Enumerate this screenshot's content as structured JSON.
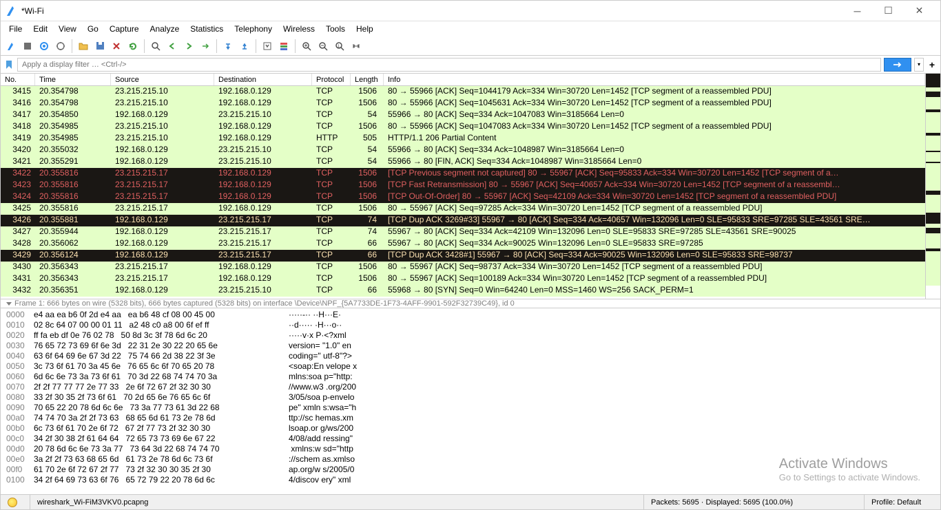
{
  "window": {
    "title": "*Wi-Fi"
  },
  "menu": [
    "File",
    "Edit",
    "View",
    "Go",
    "Capture",
    "Analyze",
    "Statistics",
    "Telephony",
    "Wireless",
    "Tools",
    "Help"
  ],
  "filter": {
    "placeholder": "Apply a display filter … <Ctrl-/>"
  },
  "columns": [
    {
      "key": "no",
      "label": "No.",
      "cls": "col-no"
    },
    {
      "key": "time",
      "label": "Time",
      "cls": "col-time"
    },
    {
      "key": "src",
      "label": "Source",
      "cls": "col-src"
    },
    {
      "key": "dst",
      "label": "Destination",
      "cls": "col-dst"
    },
    {
      "key": "proto",
      "label": "Protocol",
      "cls": "col-proto"
    },
    {
      "key": "len",
      "label": "Length",
      "cls": "col-len"
    },
    {
      "key": "info",
      "label": "Info",
      "cls": "col-info"
    }
  ],
  "row_styles": {
    "green": {
      "bg": "#e4ffc7",
      "fg": "#000000"
    },
    "dark": {
      "bg": "#1a1714",
      "fg": "#e06060"
    },
    "darkw": {
      "bg": "#1a1714",
      "fg": "#fbe0b0"
    }
  },
  "packets": [
    {
      "style": "green",
      "no": "3415",
      "time": "20.354798",
      "src": "23.215.215.10",
      "dst": "192.168.0.129",
      "proto": "TCP",
      "len": "1506",
      "info": "80 → 55966 [ACK] Seq=1044179 Ack=334 Win=30720 Len=1452 [TCP segment of a reassembled PDU]"
    },
    {
      "style": "green",
      "no": "3416",
      "time": "20.354798",
      "src": "23.215.215.10",
      "dst": "192.168.0.129",
      "proto": "TCP",
      "len": "1506",
      "info": "80 → 55966 [ACK] Seq=1045631 Ack=334 Win=30720 Len=1452 [TCP segment of a reassembled PDU]"
    },
    {
      "style": "green",
      "no": "3417",
      "time": "20.354850",
      "src": "192.168.0.129",
      "dst": "23.215.215.10",
      "proto": "TCP",
      "len": "54",
      "info": "55966 → 80 [ACK] Seq=334 Ack=1047083 Win=3185664 Len=0"
    },
    {
      "style": "green",
      "no": "3418",
      "time": "20.354985",
      "src": "23.215.215.10",
      "dst": "192.168.0.129",
      "proto": "TCP",
      "len": "1506",
      "info": "80 → 55966 [ACK] Seq=1047083 Ack=334 Win=30720 Len=1452 [TCP segment of a reassembled PDU]"
    },
    {
      "style": "green",
      "no": "3419",
      "time": "20.354985",
      "src": "23.215.215.10",
      "dst": "192.168.0.129",
      "proto": "HTTP",
      "len": "505",
      "info": "HTTP/1.1 206 Partial Content "
    },
    {
      "style": "green",
      "no": "3420",
      "time": "20.355032",
      "src": "192.168.0.129",
      "dst": "23.215.215.10",
      "proto": "TCP",
      "len": "54",
      "info": "55966 → 80 [ACK] Seq=334 Ack=1048987 Win=3185664 Len=0"
    },
    {
      "style": "green",
      "no": "3421",
      "time": "20.355291",
      "src": "192.168.0.129",
      "dst": "23.215.215.10",
      "proto": "TCP",
      "len": "54",
      "info": "55966 → 80 [FIN, ACK] Seq=334 Ack=1048987 Win=3185664 Len=0"
    },
    {
      "style": "dark",
      "no": "3422",
      "time": "20.355816",
      "src": "23.215.215.17",
      "dst": "192.168.0.129",
      "proto": "TCP",
      "len": "1506",
      "info": "[TCP Previous segment not captured] 80 → 55967 [ACK] Seq=95833 Ack=334 Win=30720 Len=1452 [TCP segment of a…"
    },
    {
      "style": "dark",
      "no": "3423",
      "time": "20.355816",
      "src": "23.215.215.17",
      "dst": "192.168.0.129",
      "proto": "TCP",
      "len": "1506",
      "info": "[TCP Fast Retransmission] 80 → 55967 [ACK] Seq=40657 Ack=334 Win=30720 Len=1452 [TCP segment of a reassembl…"
    },
    {
      "style": "dark",
      "no": "3424",
      "time": "20.355816",
      "src": "23.215.215.17",
      "dst": "192.168.0.129",
      "proto": "TCP",
      "len": "1506",
      "info": "[TCP Out-Of-Order] 80 → 55967 [ACK] Seq=42109 Ack=334 Win=30720 Len=1452 [TCP segment of a reassembled PDU]"
    },
    {
      "style": "green",
      "no": "3425",
      "time": "20.355816",
      "src": "23.215.215.17",
      "dst": "192.168.0.129",
      "proto": "TCP",
      "len": "1506",
      "info": "80 → 55967 [ACK] Seq=97285 Ack=334 Win=30720 Len=1452 [TCP segment of a reassembled PDU]"
    },
    {
      "style": "darkw",
      "no": "3426",
      "time": "20.355881",
      "src": "192.168.0.129",
      "dst": "23.215.215.17",
      "proto": "TCP",
      "len": "74",
      "info": "[TCP Dup ACK 3269#33] 55967 → 80 [ACK] Seq=334 Ack=40657 Win=132096 Len=0 SLE=95833 SRE=97285 SLE=43561 SRE…"
    },
    {
      "style": "green",
      "no": "3427",
      "time": "20.355944",
      "src": "192.168.0.129",
      "dst": "23.215.215.17",
      "proto": "TCP",
      "len": "74",
      "info": "55967 → 80 [ACK] Seq=334 Ack=42109 Win=132096 Len=0 SLE=95833 SRE=97285 SLE=43561 SRE=90025"
    },
    {
      "style": "green",
      "no": "3428",
      "time": "20.356062",
      "src": "192.168.0.129",
      "dst": "23.215.215.17",
      "proto": "TCP",
      "len": "66",
      "info": "55967 → 80 [ACK] Seq=334 Ack=90025 Win=132096 Len=0 SLE=95833 SRE=97285"
    },
    {
      "style": "darkw",
      "no": "3429",
      "time": "20.356124",
      "src": "192.168.0.129",
      "dst": "23.215.215.17",
      "proto": "TCP",
      "len": "66",
      "info": "[TCP Dup ACK 3428#1] 55967 → 80 [ACK] Seq=334 Ack=90025 Win=132096 Len=0 SLE=95833 SRE=98737"
    },
    {
      "style": "green",
      "no": "3430",
      "time": "20.356343",
      "src": "23.215.215.17",
      "dst": "192.168.0.129",
      "proto": "TCP",
      "len": "1506",
      "info": "80 → 55967 [ACK] Seq=98737 Ack=334 Win=30720 Len=1452 [TCP segment of a reassembled PDU]"
    },
    {
      "style": "green",
      "no": "3431",
      "time": "20.356343",
      "src": "23.215.215.17",
      "dst": "192.168.0.129",
      "proto": "TCP",
      "len": "1506",
      "info": "80 → 55967 [ACK] Seq=100189 Ack=334 Win=30720 Len=1452 [TCP segment of a reassembled PDU]"
    },
    {
      "style": "green",
      "no": "3432",
      "time": "20.356351",
      "src": "192.168.0.129",
      "dst": "23.215.215.10",
      "proto": "TCP",
      "len": "66",
      "info": "55968 → 80 [SYN] Seq=0 Win=64240 Len=0 MSS=1460 WS=256 SACK_PERM=1"
    }
  ],
  "frame_line": "Frame 1: 666 bytes on wire (5328 bits), 666 bytes captured (5328 bits) on interface \\Device\\NPF_{5A7733DE-1F73-4AFF-9901-592F32739C49}, id 0",
  "hex": [
    {
      "off": "0000",
      "b": "e4 aa ea b6 0f 2d e4 aa   ea b6 48 cf 08 00 45 00",
      "a": "·····-·· ··H···E·"
    },
    {
      "off": "0010",
      "b": "02 8c 64 07 00 00 01 11   a2 48 c0 a8 00 6f ef ff",
      "a": "··d····· ·H···o··"
    },
    {
      "off": "0020",
      "b": "ff fa eb df 0e 76 02 78   50 8d 3c 3f 78 6d 6c 20",
      "a": "·····v·x P·<?xml "
    },
    {
      "off": "0030",
      "b": "76 65 72 73 69 6f 6e 3d   22 31 2e 30 22 20 65 6e",
      "a": "version= \"1.0\" en"
    },
    {
      "off": "0040",
      "b": "63 6f 64 69 6e 67 3d 22   75 74 66 2d 38 22 3f 3e",
      "a": "coding=\" utf-8\"?>"
    },
    {
      "off": "0050",
      "b": "3c 73 6f 61 70 3a 45 6e   76 65 6c 6f 70 65 20 78",
      "a": "<soap:En velope x"
    },
    {
      "off": "0060",
      "b": "6d 6c 6e 73 3a 73 6f 61   70 3d 22 68 74 74 70 3a",
      "a": "mlns:soa p=\"http:"
    },
    {
      "off": "0070",
      "b": "2f 2f 77 77 77 2e 77 33   2e 6f 72 67 2f 32 30 30",
      "a": "//www.w3 .org/200"
    },
    {
      "off": "0080",
      "b": "33 2f 30 35 2f 73 6f 61   70 2d 65 6e 76 65 6c 6f",
      "a": "3/05/soa p-envelo"
    },
    {
      "off": "0090",
      "b": "70 65 22 20 78 6d 6c 6e   73 3a 77 73 61 3d 22 68",
      "a": "pe\" xmln s:wsa=\"h"
    },
    {
      "off": "00a0",
      "b": "74 74 70 3a 2f 2f 73 63   68 65 6d 61 73 2e 78 6d",
      "a": "ttp://sc hemas.xm"
    },
    {
      "off": "00b0",
      "b": "6c 73 6f 61 70 2e 6f 72   67 2f 77 73 2f 32 30 30",
      "a": "lsoap.or g/ws/200"
    },
    {
      "off": "00c0",
      "b": "34 2f 30 38 2f 61 64 64   72 65 73 73 69 6e 67 22",
      "a": "4/08/add ressing\""
    },
    {
      "off": "00d0",
      "b": "20 78 6d 6c 6e 73 3a 77   73 64 3d 22 68 74 74 70",
      "a": " xmlns:w sd=\"http"
    },
    {
      "off": "00e0",
      "b": "3a 2f 2f 73 63 68 65 6d   61 73 2e 78 6d 6c 73 6f",
      "a": "://schem as.xmlso"
    },
    {
      "off": "00f0",
      "b": "61 70 2e 6f 72 67 2f 77   73 2f 32 30 30 35 2f 30",
      "a": "ap.org/w s/2005/0"
    },
    {
      "off": "0100",
      "b": "34 2f 64 69 73 63 6f 76   65 72 79 22 20 78 6d 6c",
      "a": "4/discov ery\" xml"
    }
  ],
  "status": {
    "file": "wireshark_Wi-FiM3VKV0.pcapng",
    "packets": "Packets: 5695 · Displayed: 5695 (100.0%)",
    "profile": "Profile: Default"
  },
  "watermark": {
    "title": "Activate Windows",
    "sub": "Go to Settings to activate Windows."
  },
  "minimap": [
    {
      "h": 20,
      "c": "#1a1714"
    },
    {
      "h": 6,
      "c": "#e4ffc7"
    },
    {
      "h": 8,
      "c": "#1a1714"
    },
    {
      "h": 18,
      "c": "#e4ffc7"
    },
    {
      "h": 4,
      "c": "#1a1714"
    },
    {
      "h": 30,
      "c": "#e4ffc7"
    },
    {
      "h": 4,
      "c": "#1a1714"
    },
    {
      "h": 22,
      "c": "#e4ffc7"
    },
    {
      "h": 2,
      "c": "#1a1714"
    },
    {
      "h": 14,
      "c": "#e4ffc7"
    },
    {
      "h": 2,
      "c": "#1a1714"
    },
    {
      "h": 40,
      "c": "#e4ffc7"
    },
    {
      "h": 6,
      "c": "#1a1714"
    },
    {
      "h": 26,
      "c": "#e4ffc7"
    },
    {
      "h": 16,
      "c": "#1a1714"
    },
    {
      "h": 6,
      "c": "#e4ffc7"
    },
    {
      "h": 8,
      "c": "#1a1714"
    },
    {
      "h": 22,
      "c": "#e4ffc7"
    },
    {
      "h": 4,
      "c": "#1a1714"
    },
    {
      "h": 50,
      "c": "#e4ffc7"
    }
  ]
}
